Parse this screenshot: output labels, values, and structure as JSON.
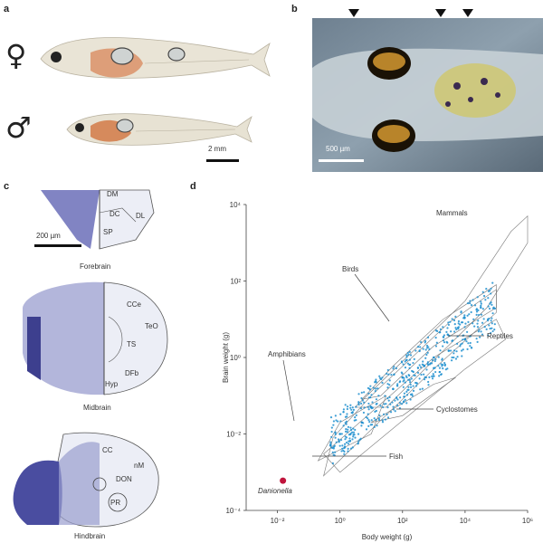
{
  "panels": {
    "a": {
      "label": "a",
      "female_symbol": "♀",
      "male_symbol": "♂",
      "scale_bar": "2 mm"
    },
    "b": {
      "label": "b",
      "scale_bar": "500 µm"
    },
    "c": {
      "label": "c",
      "scale_bar": "200 µm",
      "sections": [
        {
          "name": "Forebrain",
          "regions": [
            "DM",
            "DC",
            "DL",
            "SP"
          ]
        },
        {
          "name": "Midbrain",
          "regions": [
            "CCe",
            "TeO",
            "TS",
            "DFb",
            "Hyp"
          ]
        },
        {
          "name": "Hindbrain",
          "regions": [
            "CC",
            "nM",
            "DON",
            "PR"
          ]
        }
      ]
    },
    "d": {
      "label": "d",
      "groups": [
        "Mammals",
        "Birds",
        "Reptiles",
        "Amphibians",
        "Cyclostomes",
        "Fish"
      ],
      "highlight": "Danionella",
      "highlight_color": "#c0143c",
      "point_color": "#1f8fcf"
    }
  },
  "chart_data": {
    "type": "scatter",
    "title": "",
    "xlabel": "Body weight (g)",
    "ylabel": "Brain weight (g)",
    "xscale": "log",
    "yscale": "log",
    "xlim": [
      0.001,
      1000000
    ],
    "ylim": [
      0.0001,
      10000
    ],
    "xticks": [
      "10⁻²",
      "10⁰",
      "10²",
      "10⁴",
      "10⁶"
    ],
    "yticks": [
      "10⁻⁴",
      "10⁻²",
      "10⁰",
      "10²",
      "10⁴"
    ],
    "series": [
      {
        "name": "Fish",
        "color": "#1f8fcf",
        "points": [
          [
            1,
            0.01
          ],
          [
            10,
            0.05
          ],
          [
            100,
            0.3
          ],
          [
            1000,
            1
          ],
          [
            10000,
            3
          ],
          [
            0.5,
            0.005
          ],
          [
            5,
            0.02
          ],
          [
            50,
            0.15
          ],
          [
            500,
            0.6
          ],
          [
            3000,
            1.5
          ]
        ]
      },
      {
        "name": "Danionella",
        "color": "#c0143c",
        "points": [
          [
            0.015,
            0.0006
          ]
        ]
      }
    ],
    "grid": false
  }
}
